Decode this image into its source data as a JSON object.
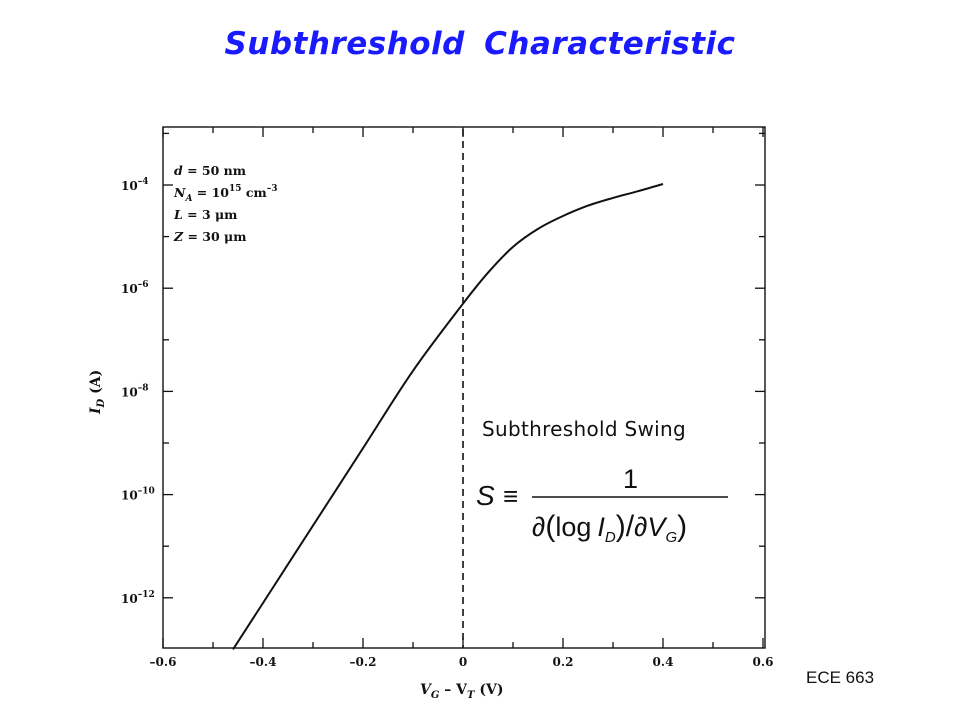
{
  "slide": {
    "title": "Subthreshold Characteristic",
    "footer": "ECE 663"
  },
  "chart_data": {
    "type": "line",
    "x_axis": {
      "label_main": "V",
      "label_sub1": "G",
      "label_mid": " – V",
      "label_sub2": "T",
      "label_unit": " (V)",
      "range": [
        -0.6,
        0.6
      ],
      "ticks": [
        -0.6,
        -0.4,
        -0.2,
        0,
        0.2,
        0.4,
        0.6
      ],
      "tick_labels": [
        "–0.6",
        "–0.4",
        "–0.2",
        "0",
        "0.2",
        "0.4",
        "0.6"
      ]
    },
    "y_axis": {
      "label_main": "I",
      "label_sub": "D",
      "label_unit": " (A)",
      "scale": "log",
      "range_exponent": [
        -13,
        -3
      ],
      "ticks_exponent": [
        -4,
        -6,
        -8,
        -10,
        -12
      ],
      "tick_label_base": "10",
      "tick_label_exponents": [
        "–4",
        "–6",
        "–8",
        "–10",
        "–12"
      ]
    },
    "series": [
      {
        "x": [
          -0.46,
          -0.4,
          -0.3,
          -0.2,
          -0.1,
          0.0,
          0.05,
          0.1,
          0.15,
          0.2,
          0.25,
          0.3,
          0.35,
          0.4
        ],
        "y_exponent": [
          -13.0,
          -12.1,
          -10.6,
          -9.1,
          -7.6,
          -6.3,
          -5.7,
          -5.2,
          -4.85,
          -4.6,
          -4.4,
          -4.25,
          -4.12,
          -3.98
        ]
      }
    ],
    "threshold_line_x": 0,
    "parameters": [
      {
        "var": "d",
        "sub": "",
        "text": " = 50 nm",
        "sup": ""
      },
      {
        "var": "N",
        "sub": "A",
        "text": " = 10",
        "sup": "15",
        "tail": " cm",
        "tail_sup": "–3"
      },
      {
        "var": "L",
        "sub": "",
        "text": " = 3 μm",
        "sup": ""
      },
      {
        "var": "Z",
        "sub": "",
        "text": " = 30 μm",
        "sup": ""
      }
    ],
    "annotation": "Subthreshold Swing",
    "formula": {
      "lhs": "S",
      "equiv": "≡",
      "numerator": "1",
      "log": "log",
      "var_i": "I",
      "sub_d": "D",
      "var_v": "V",
      "sub_g": "G",
      "partial": "∂"
    },
    "grid": false,
    "colors": {
      "line": "#111111",
      "title": "#1a1aff"
    }
  }
}
